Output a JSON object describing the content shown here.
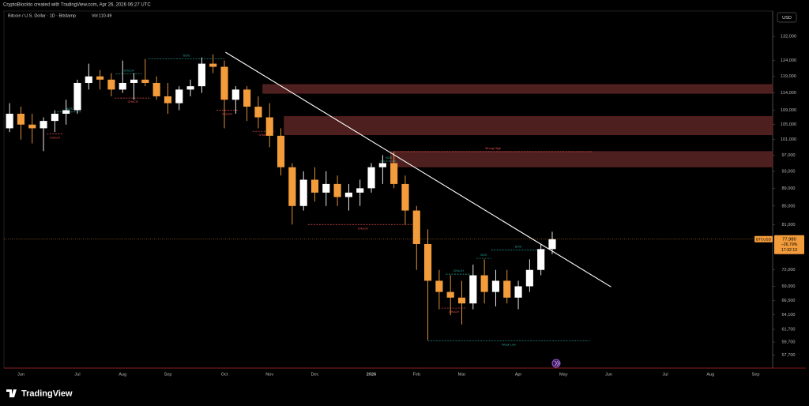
{
  "header": "CryptoBlockto created with TradingView.com, Apr 26, 2026 06:27 UTC",
  "footer_logo": "TradingView",
  "chart_data": {
    "type": "candlestick",
    "title": "Bitcoin / U.S. Dollar · 1D · Bitstamp",
    "volume_label": "Vol",
    "volume": 110.49,
    "currency": "USD",
    "symbol": "BTCUSD",
    "log": true,
    "grid": false,
    "up_color": "#ffffff",
    "down_color": "#f39c3c",
    "ylim": [
      55800,
      141000
    ],
    "yticks": [
      {
        "value": 132000,
        "label": "132,000"
      },
      {
        "value": 124000,
        "label": "124,000"
      },
      {
        "value": 119000,
        "label": "119,000"
      },
      {
        "value": 114000,
        "label": "114,000"
      },
      {
        "value": 109000,
        "label": "109,000"
      },
      {
        "value": 105000,
        "label": "105,000"
      },
      {
        "value": 101000,
        "label": "101,000"
      },
      {
        "value": 97000,
        "label": "97,000"
      },
      {
        "value": 93000,
        "label": "93,000"
      },
      {
        "value": 89000,
        "label": "89,000"
      },
      {
        "value": 85000,
        "label": "85,000"
      },
      {
        "value": 81000,
        "label": "81,000"
      },
      {
        "value": 72000,
        "label": "72,000"
      },
      {
        "value": 69000,
        "label": "69,000"
      },
      {
        "value": 66500,
        "label": "66,500"
      },
      {
        "value": 64100,
        "label": "64,100"
      },
      {
        "value": 61700,
        "label": "61,700"
      },
      {
        "value": 59700,
        "label": "59,700"
      },
      {
        "value": 57700,
        "label": "57,700"
      }
    ],
    "categories": [
      null,
      "Jun",
      null,
      null,
      null,
      null,
      "Jul",
      null,
      null,
      null,
      "Aug",
      null,
      null,
      null,
      "Sep",
      null,
      null,
      null,
      null,
      "Oct",
      null,
      null,
      null,
      "Nov",
      null,
      null,
      null,
      "Dec",
      null,
      null,
      null,
      null,
      "2026",
      null,
      null,
      null,
      "Feb",
      null,
      null,
      null,
      "Mar",
      null,
      null,
      null,
      null,
      "Apr",
      null,
      null,
      null,
      "May",
      null,
      null,
      null,
      "Jun",
      null,
      null,
      null,
      null,
      "Jul",
      null,
      null,
      null,
      "Aug",
      null,
      null,
      null,
      "Sep",
      null
    ],
    "open": [
      104000,
      108000,
      105000,
      104000,
      106000,
      108000,
      109000,
      117000,
      119000,
      118000,
      115000,
      117000,
      118000,
      117000,
      113000,
      111000,
      115000,
      116000,
      123000,
      122000,
      112000,
      115000,
      110000,
      107000,
      102000,
      94000,
      85000,
      91000,
      88000,
      90000,
      87000,
      88000,
      89000,
      94000,
      95000,
      90000,
      84000,
      77000,
      70000,
      68000,
      67000,
      66000,
      71000,
      68000,
      70000,
      67000,
      69000,
      72000,
      76000,
      null,
      null,
      null,
      null,
      null,
      null,
      null,
      null,
      null,
      null,
      null,
      null,
      null,
      null,
      null,
      null,
      null,
      null,
      null
    ],
    "high": [
      111000,
      110000,
      108000,
      107000,
      109000,
      112000,
      118000,
      123000,
      121000,
      120000,
      124000,
      120000,
      124500,
      119000,
      117000,
      116000,
      118000,
      125000,
      126000,
      124000,
      116000,
      116000,
      113000,
      111000,
      104000,
      95000,
      93000,
      94000,
      93000,
      92000,
      90000,
      91000,
      95000,
      97000,
      97800,
      92000,
      85000,
      80000,
      72000,
      71000,
      70000,
      73000,
      74000,
      72000,
      72000,
      70000,
      74000,
      77000,
      79500,
      null,
      null,
      null,
      null,
      null,
      null,
      null,
      null,
      null,
      null,
      null,
      null,
      null,
      null,
      null,
      null,
      null,
      null,
      null
    ],
    "low": [
      103000,
      101000,
      100000,
      98000,
      103000,
      105000,
      108000,
      115000,
      115000,
      113000,
      114000,
      112000,
      116000,
      112000,
      108000,
      109000,
      113000,
      114000,
      120000,
      104000,
      108000,
      106000,
      104000,
      99000,
      92000,
      81000,
      84000,
      86000,
      85000,
      85000,
      84000,
      85000,
      88000,
      90000,
      89000,
      81000,
      72000,
      60000,
      65000,
      64000,
      62500,
      65000,
      66000,
      65500,
      66000,
      65000,
      68000,
      71000,
      75000,
      null,
      null,
      null,
      null,
      null,
      null,
      null,
      null,
      null,
      null,
      null,
      null,
      null,
      null,
      null,
      null,
      null,
      null,
      null
    ],
    "close": [
      108000,
      105000,
      104000,
      106000,
      108000,
      109000,
      117000,
      119000,
      118000,
      115000,
      117000,
      118000,
      117000,
      113000,
      111000,
      115000,
      116000,
      123000,
      122000,
      112000,
      115000,
      110000,
      107000,
      102000,
      94000,
      85000,
      91000,
      88000,
      90000,
      87000,
      88000,
      89000,
      94000,
      95000,
      90000,
      84000,
      77000,
      70000,
      68000,
      67000,
      66000,
      71000,
      68000,
      70000,
      67000,
      69000,
      72000,
      76000,
      77980,
      null,
      null,
      null,
      null,
      null,
      null,
      null,
      null,
      null,
      null,
      null,
      null,
      null,
      null,
      null,
      null,
      null,
      null,
      null
    ],
    "last_price": {
      "value": 77980,
      "label": "77,980"
    },
    "change": "−26.79%",
    "countdown": "17:32:13",
    "zones": [
      {
        "low": 113900,
        "high": 116500,
        "from": 22.4,
        "color": "#4d1f1f"
      },
      {
        "low": 102300,
        "high": 107200,
        "from": 24.3,
        "color": "#4d1f1f"
      },
      {
        "low": 94100,
        "high": 97900,
        "from": 33.7,
        "color": "#4d1f1f"
      }
    ],
    "trendline": {
      "from": 19.1,
      "from_price": 126700,
      "to": 53.2,
      "to_price": 68900,
      "color": "#ffffff"
    },
    "annotations": [
      {
        "label": "BOS",
        "price": 124500,
        "from": 12.3,
        "to": 19.0,
        "color": "#26a69a",
        "side": "above"
      },
      {
        "label": "CHoCH",
        "price": 119800,
        "from": 9.4,
        "to": 11.7,
        "color": "#26a69a",
        "side": "above"
      },
      {
        "label": "CHoCH",
        "price": 112500,
        "from": 9.3,
        "to": 12.5,
        "color": "#ef5350",
        "side": "below"
      },
      {
        "label": "BOS",
        "price": 108500,
        "from": 4.2,
        "to": 6.4,
        "color": "#26a69a",
        "side": "above"
      },
      {
        "label": "CHoCH",
        "price": 102500,
        "from": 3.3,
        "to": 4.7,
        "color": "#ef5350",
        "side": "below"
      },
      {
        "label": "CHoCH",
        "price": 109000,
        "from": 18.3,
        "to": 20.2,
        "color": "#ef5350",
        "side": "below"
      },
      {
        "label": "CHoCH",
        "price": 103200,
        "from": 21.5,
        "to": 23.5,
        "color": "#ef5350",
        "side": "below"
      },
      {
        "label": "CHoCH",
        "price": 81000,
        "from": 26.4,
        "to": 36.1,
        "color": "#ef5350",
        "side": "below"
      },
      {
        "label": "BOS",
        "price": 95500,
        "from": 32.8,
        "to": 34.3,
        "color": "#26a69a",
        "side": "above"
      },
      {
        "label": "Strong High",
        "price": 97900,
        "from": 34.0,
        "to": 51.5,
        "color": "#ef5350",
        "side": "above"
      },
      {
        "label": "Weak Low",
        "price": 59900,
        "from": 37.0,
        "to": 51.3,
        "color": "#26a69a",
        "side": "below"
      },
      {
        "label": "BOS",
        "price": 75800,
        "from": 42.6,
        "to": 47.4,
        "color": "#26a69a",
        "side": "above"
      },
      {
        "label": "BOS",
        "price": 74200,
        "from": 41.3,
        "to": 42.6,
        "color": "#26a69a",
        "side": "above"
      },
      {
        "label": "CHoCH",
        "price": 71200,
        "from": 38.6,
        "to": 40.8,
        "color": "#26a69a",
        "side": "above"
      },
      {
        "label": "CHoCH",
        "price": 65200,
        "from": 38.2,
        "to": 40.4,
        "color": "#ef5350",
        "side": "below"
      }
    ]
  }
}
